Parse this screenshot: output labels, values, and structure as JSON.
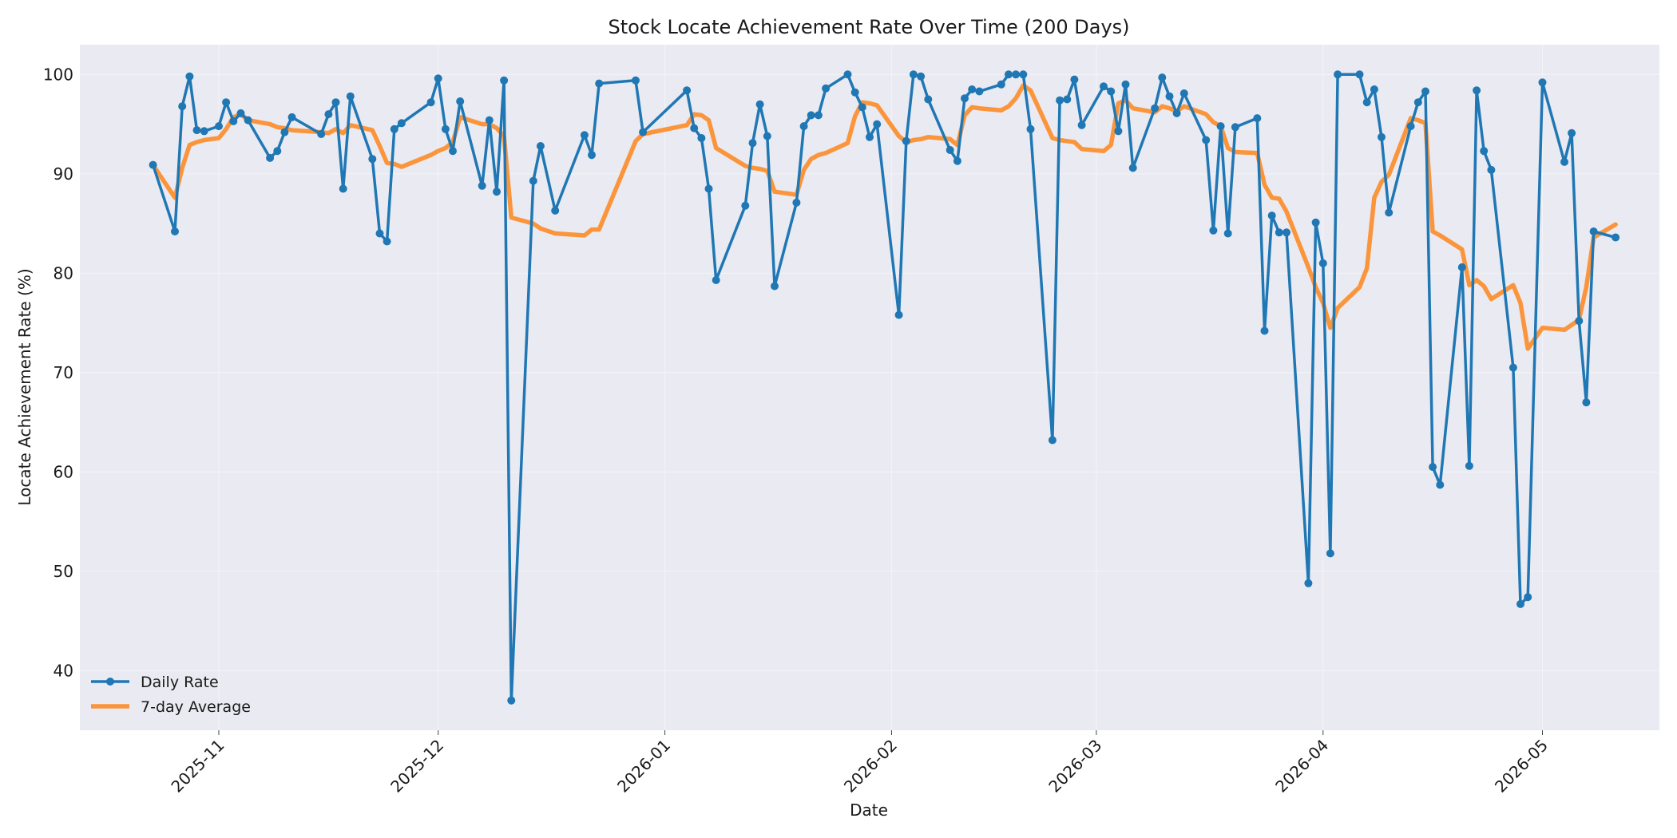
{
  "chart_data": {
    "type": "line",
    "title": "Stock Locate Achievement Rate Over Time (200 Days)",
    "xlabel": "Date",
    "ylabel": "Locate Achievement Rate (%)",
    "xlim": [
      "2025-10-13",
      "2026-05-17"
    ],
    "ylim": [
      34,
      103
    ],
    "xticks": [
      "2025-11",
      "2025-12",
      "2026-01",
      "2026-02",
      "2026-03",
      "2026-04",
      "2026-05"
    ],
    "yticks": [
      40,
      50,
      60,
      70,
      80,
      90,
      100
    ],
    "grid": true,
    "legend_position": "bottom-left",
    "colors": {
      "background": "#eaeaf2",
      "series1": "#1f77b4",
      "series2": "#ff7f0e"
    },
    "series": [
      {
        "name": "Daily Rate",
        "marker": "circle",
        "points": [
          [
            "2025-10-23",
            90.9
          ],
          [
            "2025-10-26",
            84.2
          ],
          [
            "2025-10-27",
            96.8
          ],
          [
            "2025-10-28",
            99.8
          ],
          [
            "2025-10-29",
            94.4
          ],
          [
            "2025-10-30",
            94.3
          ],
          [
            "2025-11-01",
            94.8
          ],
          [
            "2025-11-02",
            97.2
          ],
          [
            "2025-11-03",
            95.3
          ],
          [
            "2025-11-04",
            96.1
          ],
          [
            "2025-11-05",
            95.4
          ],
          [
            "2025-11-08",
            91.6
          ],
          [
            "2025-11-09",
            92.3
          ],
          [
            "2025-11-10",
            94.2
          ],
          [
            "2025-11-11",
            95.7
          ],
          [
            "2025-11-15",
            94.0
          ],
          [
            "2025-11-16",
            96.0
          ],
          [
            "2025-11-17",
            97.2
          ],
          [
            "2025-11-18",
            88.5
          ],
          [
            "2025-11-19",
            97.8
          ],
          [
            "2025-11-22",
            91.5
          ],
          [
            "2025-11-23",
            84.0
          ],
          [
            "2025-11-24",
            83.2
          ],
          [
            "2025-11-25",
            94.5
          ],
          [
            "2025-11-26",
            95.1
          ],
          [
            "2025-11-30",
            97.2
          ],
          [
            "2025-12-01",
            99.6
          ],
          [
            "2025-12-02",
            94.5
          ],
          [
            "2025-12-03",
            92.3
          ],
          [
            "2025-12-04",
            97.3
          ],
          [
            "2025-12-07",
            88.8
          ],
          [
            "2025-12-08",
            95.4
          ],
          [
            "2025-12-09",
            88.2
          ],
          [
            "2025-12-10",
            99.4
          ],
          [
            "2025-12-11",
            37.0
          ],
          [
            "2025-12-14",
            89.3
          ],
          [
            "2025-12-15",
            92.8
          ],
          [
            "2025-12-17",
            86.3
          ],
          [
            "2025-12-21",
            93.9
          ],
          [
            "2025-12-22",
            91.9
          ],
          [
            "2025-12-23",
            99.1
          ],
          [
            "2025-12-28",
            99.4
          ],
          [
            "2025-12-29",
            94.2
          ],
          [
            "2026-01-04",
            98.4
          ],
          [
            "2026-01-05",
            94.6
          ],
          [
            "2026-01-06",
            93.6
          ],
          [
            "2026-01-07",
            88.5
          ],
          [
            "2026-01-08",
            79.3
          ],
          [
            "2026-01-12",
            86.8
          ],
          [
            "2026-01-13",
            93.1
          ],
          [
            "2026-01-14",
            97.0
          ],
          [
            "2026-01-15",
            93.8
          ],
          [
            "2026-01-16",
            78.7
          ],
          [
            "2026-01-19",
            87.1
          ],
          [
            "2026-01-20",
            94.8
          ],
          [
            "2026-01-21",
            95.9
          ],
          [
            "2026-01-22",
            95.9
          ],
          [
            "2026-01-23",
            98.6
          ],
          [
            "2026-01-26",
            100.0
          ],
          [
            "2026-01-27",
            98.2
          ],
          [
            "2026-01-28",
            96.7
          ],
          [
            "2026-01-29",
            93.7
          ],
          [
            "2026-01-30",
            95.0
          ],
          [
            "2026-02-02",
            75.8
          ],
          [
            "2026-02-03",
            93.3
          ],
          [
            "2026-02-04",
            100.0
          ],
          [
            "2026-02-05",
            99.8
          ],
          [
            "2026-02-06",
            97.5
          ],
          [
            "2026-02-09",
            92.4
          ],
          [
            "2026-02-10",
            91.3
          ],
          [
            "2026-02-11",
            97.6
          ],
          [
            "2026-02-12",
            98.5
          ],
          [
            "2026-02-13",
            98.3
          ],
          [
            "2026-02-16",
            99.0
          ],
          [
            "2026-02-17",
            100.0
          ],
          [
            "2026-02-18",
            100.0
          ],
          [
            "2026-02-19",
            100.0
          ],
          [
            "2026-02-20",
            94.5
          ],
          [
            "2026-02-23",
            63.2
          ],
          [
            "2026-02-24",
            97.4
          ],
          [
            "2026-02-25",
            97.5
          ],
          [
            "2026-02-26",
            99.5
          ],
          [
            "2026-02-27",
            94.9
          ],
          [
            "2026-03-02",
            98.8
          ],
          [
            "2026-03-03",
            98.3
          ],
          [
            "2026-03-04",
            94.3
          ],
          [
            "2026-03-05",
            99.0
          ],
          [
            "2026-03-06",
            90.6
          ],
          [
            "2026-03-09",
            96.6
          ],
          [
            "2026-03-10",
            99.7
          ],
          [
            "2026-03-11",
            97.8
          ],
          [
            "2026-03-12",
            96.1
          ],
          [
            "2026-03-13",
            98.1
          ],
          [
            "2026-03-16",
            93.4
          ],
          [
            "2026-03-17",
            84.3
          ],
          [
            "2026-03-18",
            94.8
          ],
          [
            "2026-03-19",
            84.0
          ],
          [
            "2026-03-20",
            94.7
          ],
          [
            "2026-03-23",
            95.6
          ],
          [
            "2026-03-24",
            74.2
          ],
          [
            "2026-03-25",
            85.8
          ],
          [
            "2026-03-26",
            84.1
          ],
          [
            "2026-03-27",
            84.1
          ],
          [
            "2026-03-30",
            48.8
          ],
          [
            "2026-03-31",
            85.1
          ],
          [
            "2026-04-01",
            81.0
          ],
          [
            "2026-04-02",
            51.8
          ],
          [
            "2026-04-03",
            100.0
          ],
          [
            "2026-04-06",
            100.0
          ],
          [
            "2026-04-07",
            97.2
          ],
          [
            "2026-04-08",
            98.5
          ],
          [
            "2026-04-09",
            93.7
          ],
          [
            "2026-04-10",
            86.1
          ],
          [
            "2026-04-13",
            94.8
          ],
          [
            "2026-04-14",
            97.2
          ],
          [
            "2026-04-15",
            98.3
          ],
          [
            "2026-04-16",
            60.5
          ],
          [
            "2026-04-17",
            58.7
          ],
          [
            "2026-04-20",
            80.6
          ],
          [
            "2026-04-21",
            60.6
          ],
          [
            "2026-04-22",
            98.4
          ],
          [
            "2026-04-23",
            92.3
          ],
          [
            "2026-04-24",
            90.4
          ],
          [
            "2026-04-27",
            70.5
          ],
          [
            "2026-04-28",
            46.7
          ],
          [
            "2026-04-29",
            47.4
          ],
          [
            "2026-05-01",
            99.2
          ],
          [
            "2026-05-04",
            91.2
          ],
          [
            "2026-05-05",
            94.1
          ],
          [
            "2026-05-06",
            75.2
          ],
          [
            "2026-05-07",
            67.0
          ],
          [
            "2026-05-08",
            84.2
          ],
          [
            "2026-05-11",
            83.6
          ]
        ]
      },
      {
        "name": "7-day Average",
        "marker": "none",
        "points": [
          [
            "2025-10-23",
            90.9
          ],
          [
            "2025-10-26",
            87.6
          ],
          [
            "2025-10-27",
            90.6
          ],
          [
            "2025-10-28",
            92.9
          ],
          [
            "2025-10-29",
            93.2
          ],
          [
            "2025-10-30",
            93.4
          ],
          [
            "2025-11-01",
            93.6
          ],
          [
            "2025-11-02",
            94.5
          ],
          [
            "2025-11-03",
            95.7
          ],
          [
            "2025-11-04",
            96.0
          ],
          [
            "2025-11-05",
            95.4
          ],
          [
            "2025-11-08",
            95.0
          ],
          [
            "2025-11-09",
            94.7
          ],
          [
            "2025-11-10",
            94.6
          ],
          [
            "2025-11-11",
            94.4
          ],
          [
            "2025-11-15",
            94.2
          ],
          [
            "2025-11-16",
            94.1
          ],
          [
            "2025-11-17",
            94.5
          ],
          [
            "2025-11-18",
            94.1
          ],
          [
            "2025-11-19",
            94.9
          ],
          [
            "2025-11-22",
            94.4
          ],
          [
            "2025-11-23",
            92.8
          ],
          [
            "2025-11-24",
            91.1
          ],
          [
            "2025-11-25",
            91.0
          ],
          [
            "2025-11-26",
            90.7
          ],
          [
            "2025-11-30",
            91.9
          ],
          [
            "2025-12-01",
            92.3
          ],
          [
            "2025-12-02",
            92.6
          ],
          [
            "2025-12-03",
            93.2
          ],
          [
            "2025-12-04",
            95.7
          ],
          [
            "2025-12-07",
            95.0
          ],
          [
            "2025-12-08",
            95.0
          ],
          [
            "2025-12-09",
            94.6
          ],
          [
            "2025-12-10",
            93.8
          ],
          [
            "2025-12-11",
            85.6
          ],
          [
            "2025-12-14",
            85.0
          ],
          [
            "2025-12-15",
            84.5
          ],
          [
            "2025-12-17",
            84.0
          ],
          [
            "2025-12-21",
            83.8
          ],
          [
            "2025-12-22",
            84.4
          ],
          [
            "2025-12-23",
            84.4
          ],
          [
            "2025-12-28",
            93.3
          ],
          [
            "2025-12-29",
            94.0
          ],
          [
            "2026-01-04",
            94.9
          ],
          [
            "2026-01-05",
            96.0
          ],
          [
            "2026-01-06",
            95.9
          ],
          [
            "2026-01-07",
            95.4
          ],
          [
            "2026-01-08",
            92.6
          ],
          [
            "2026-01-12",
            90.8
          ],
          [
            "2026-01-13",
            90.6
          ],
          [
            "2026-01-14",
            90.5
          ],
          [
            "2026-01-15",
            90.3
          ],
          [
            "2026-01-16",
            88.2
          ],
          [
            "2026-01-19",
            87.9
          ],
          [
            "2026-01-20",
            90.4
          ],
          [
            "2026-01-21",
            91.5
          ],
          [
            "2026-01-22",
            91.9
          ],
          [
            "2026-01-23",
            92.1
          ],
          [
            "2026-01-26",
            93.1
          ],
          [
            "2026-01-27",
            95.8
          ],
          [
            "2026-01-28",
            97.2
          ],
          [
            "2026-01-29",
            97.1
          ],
          [
            "2026-01-30",
            96.9
          ],
          [
            "2026-02-02",
            93.8
          ],
          [
            "2026-02-03",
            93.2
          ],
          [
            "2026-02-04",
            93.4
          ],
          [
            "2026-02-05",
            93.5
          ],
          [
            "2026-02-06",
            93.7
          ],
          [
            "2026-02-09",
            93.5
          ],
          [
            "2026-02-10",
            92.9
          ],
          [
            "2026-02-11",
            95.9
          ],
          [
            "2026-02-12",
            96.7
          ],
          [
            "2026-02-13",
            96.6
          ],
          [
            "2026-02-16",
            96.4
          ],
          [
            "2026-02-17",
            96.8
          ],
          [
            "2026-02-18",
            97.6
          ],
          [
            "2026-02-19",
            98.9
          ],
          [
            "2026-02-20",
            98.4
          ],
          [
            "2026-02-23",
            93.6
          ],
          [
            "2026-02-24",
            93.4
          ],
          [
            "2026-02-25",
            93.3
          ],
          [
            "2026-02-26",
            93.2
          ],
          [
            "2026-02-27",
            92.5
          ],
          [
            "2026-03-02",
            92.3
          ],
          [
            "2026-03-03",
            92.9
          ],
          [
            "2026-03-04",
            97.1
          ],
          [
            "2026-03-05",
            97.4
          ],
          [
            "2026-03-06",
            96.6
          ],
          [
            "2026-03-09",
            96.2
          ],
          [
            "2026-03-10",
            96.8
          ],
          [
            "2026-03-11",
            96.6
          ],
          [
            "2026-03-12",
            96.3
          ],
          [
            "2026-03-13",
            96.8
          ],
          [
            "2026-03-16",
            96.0
          ],
          [
            "2026-03-17",
            95.2
          ],
          [
            "2026-03-18",
            94.8
          ],
          [
            "2026-03-19",
            92.6
          ],
          [
            "2026-03-20",
            92.2
          ],
          [
            "2026-03-23",
            92.1
          ],
          [
            "2026-03-24",
            88.9
          ],
          [
            "2026-03-25",
            87.6
          ],
          [
            "2026-03-26",
            87.5
          ],
          [
            "2026-03-27",
            86.2
          ],
          [
            "2026-03-30",
            80.6
          ],
          [
            "2026-03-31",
            78.6
          ],
          [
            "2026-04-01",
            77.0
          ],
          [
            "2026-04-02",
            74.5
          ],
          [
            "2026-04-03",
            76.5
          ],
          [
            "2026-04-06",
            78.6
          ],
          [
            "2026-04-07",
            80.5
          ],
          [
            "2026-04-08",
            87.6
          ],
          [
            "2026-04-09",
            89.2
          ],
          [
            "2026-04-10",
            89.9
          ],
          [
            "2026-04-13",
            95.6
          ],
          [
            "2026-04-14",
            95.4
          ],
          [
            "2026-04-15",
            95.1
          ],
          [
            "2026-04-16",
            84.2
          ],
          [
            "2026-04-17",
            83.8
          ],
          [
            "2026-04-20",
            82.4
          ],
          [
            "2026-04-21",
            78.8
          ],
          [
            "2026-04-22",
            79.3
          ],
          [
            "2026-04-23",
            78.7
          ],
          [
            "2026-04-24",
            77.4
          ],
          [
            "2026-04-27",
            78.8
          ],
          [
            "2026-04-28",
            77.0
          ],
          [
            "2026-04-29",
            72.4
          ],
          [
            "2026-05-01",
            74.5
          ],
          [
            "2026-05-04",
            74.3
          ],
          [
            "2026-05-05",
            74.8
          ],
          [
            "2026-05-06",
            75.3
          ],
          [
            "2026-05-07",
            78.6
          ],
          [
            "2026-05-08",
            83.6
          ],
          [
            "2026-05-11",
            84.9
          ]
        ]
      }
    ]
  }
}
